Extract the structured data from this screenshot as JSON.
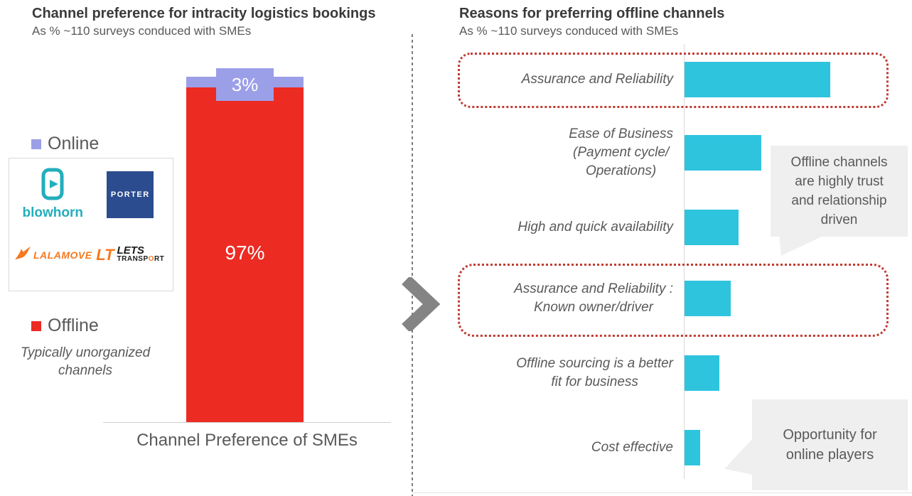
{
  "chart_data": [
    {
      "type": "bar",
      "id": "channel-preference",
      "orientation": "vertical-stacked",
      "title": "Channel preference for intracity logistics bookings",
      "subtitle": "As % ~110 surveys conduced with SMEs",
      "categories": [
        "Channel Preference of SMEs"
      ],
      "series": [
        {
          "name": "Online",
          "values": [
            3
          ],
          "label": "3%",
          "color": "#9b9fe8"
        },
        {
          "name": "Offline",
          "values": [
            97
          ],
          "label": "97%",
          "color": "#ec2b23"
        }
      ],
      "ylim": [
        0,
        100
      ],
      "grid": false,
      "legend_position": "left",
      "annotation": "Typically unorganized channels",
      "online_players_logos": [
        "blowhorn",
        "PORTER",
        "LALAMOVE",
        "LETS TRANSPORT"
      ]
    },
    {
      "type": "bar",
      "id": "reasons-offline",
      "orientation": "horizontal",
      "title": "Reasons for preferring offline channels",
      "subtitle": "As % ~110 surveys conduced with SMEs",
      "categories": [
        "Assurance and Reliability",
        "Ease of Business (Payment cycle/ Operations)",
        "High and quick availability",
        "Assurance and Reliability : Known owner/driver",
        "Offline sourcing is a better fit for business",
        "Cost effective"
      ],
      "label_lines": [
        [
          "Assurance and Reliability"
        ],
        [
          "Ease of Business",
          "(Payment cycle/",
          "Operations)"
        ],
        [
          "High and quick availability"
        ],
        [
          "Assurance and Reliability :",
          "Known owner/driver"
        ],
        [
          "Offline sourcing is a better",
          "fit for business"
        ],
        [
          "Cost effective"
        ]
      ],
      "values": [
        38,
        20,
        14,
        12,
        9,
        4
      ],
      "values_estimated": true,
      "bar_color": "#2ec4de",
      "grid": false,
      "highlighted_category_indexes": [
        0,
        3
      ],
      "highlight_border_color": "#be3c32"
    }
  ],
  "logos": {
    "blowhorn": "blowhorn",
    "porter": "PORTER",
    "lalamove": "LALAMOVE",
    "letstransport_line1": "LETS",
    "letstransport_lt": "LT",
    "letstransport_line2_pre": "TRANSP",
    "letstransport_o": "O",
    "letstransport_line2_post": "RT",
    "porter_bg": "#2b4c8e",
    "blowhorn_color": "#23aebc",
    "orange": "#f47920"
  },
  "callouts": [
    {
      "lines": [
        "Offline channels",
        "are highly trust",
        "and relationship",
        "driven"
      ]
    },
    {
      "lines": [
        "Opportunity for",
        "online players"
      ]
    }
  ]
}
